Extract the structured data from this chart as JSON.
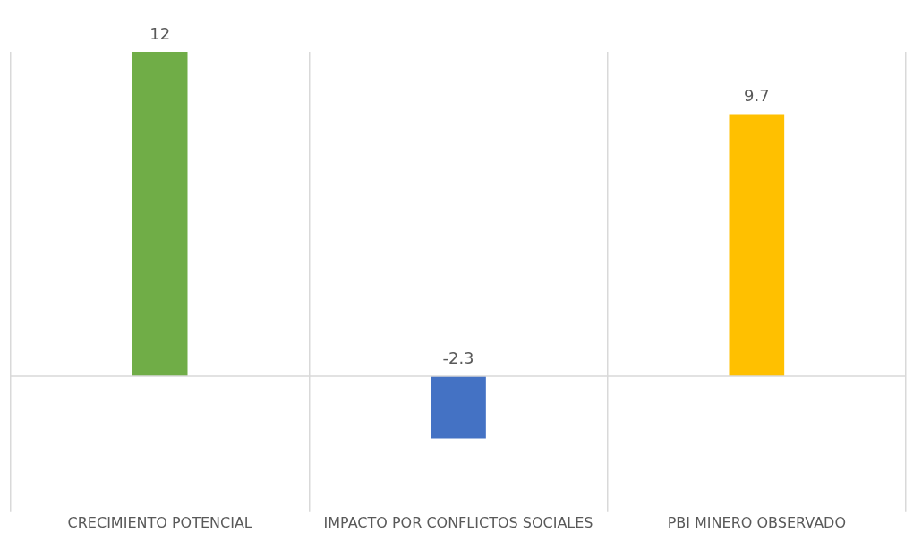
{
  "chart_data": {
    "type": "bar",
    "categories": [
      "CRECIMIENTO POTENCIAL",
      "IMPACTO POR CONFLICTOS SOCIALES",
      "PBI MINERO OBSERVADO"
    ],
    "values": [
      12,
      -2.3,
      9.7
    ],
    "colors": [
      "#70ad47",
      "#4472c4",
      "#ffc000"
    ],
    "data_labels": true,
    "grid": "x",
    "legend": false
  }
}
